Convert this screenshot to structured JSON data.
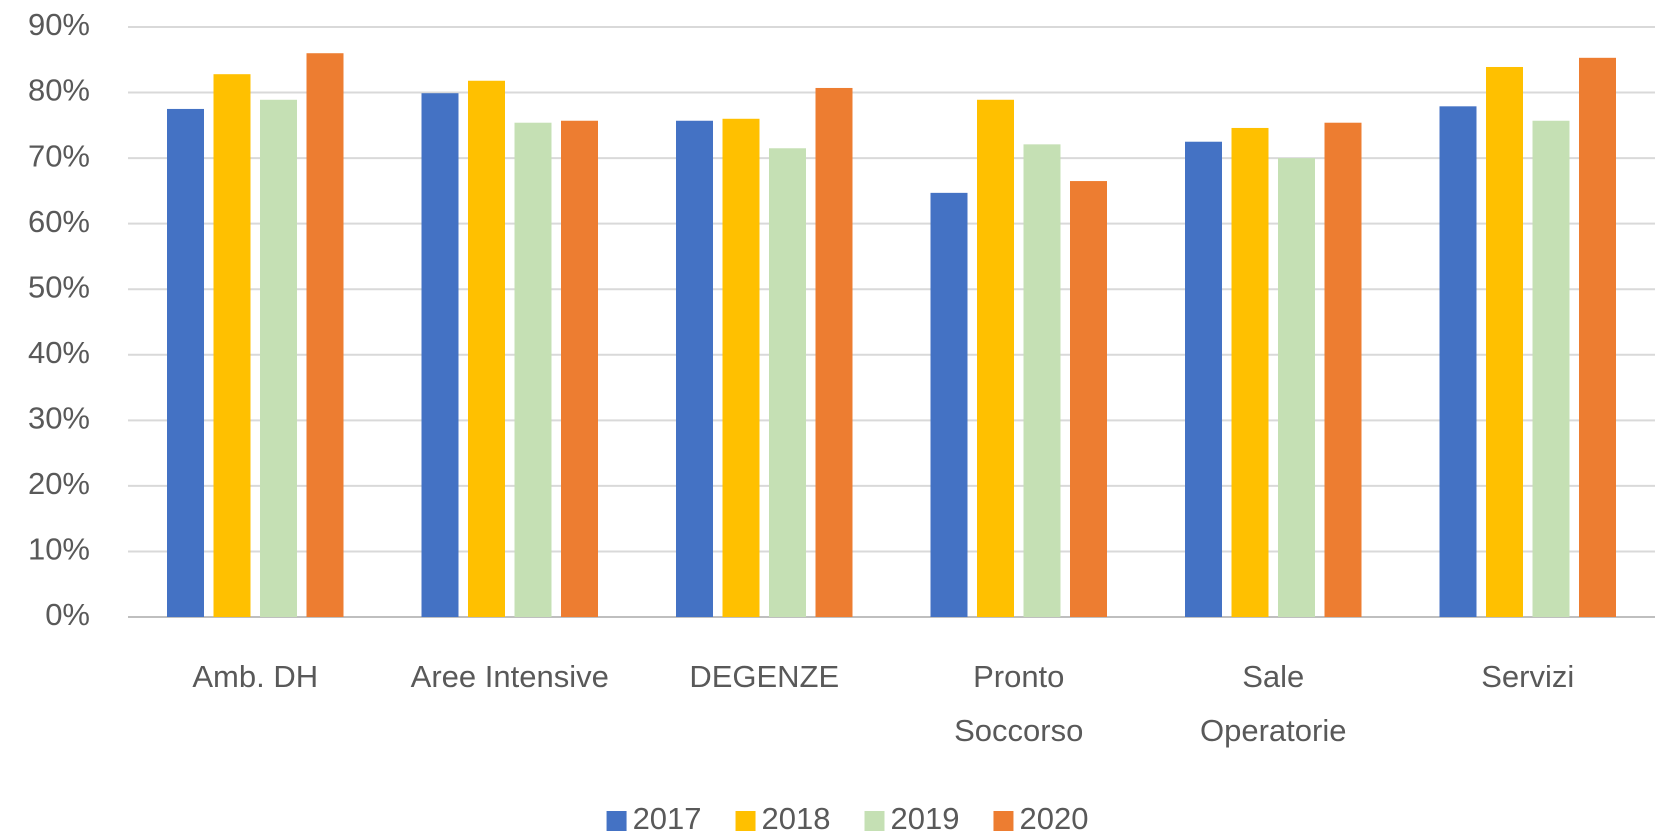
{
  "chart_data": {
    "type": "bar",
    "categories": [
      "Amb. DH",
      "Aree Intensive",
      "DEGENZE",
      "Pronto\nSoccorso",
      "Sale\nOperatorie",
      "Servizi"
    ],
    "series": [
      {
        "name": "2017",
        "color": "#4472c4",
        "values": [
          77.5,
          79.9,
          75.7,
          64.7,
          72.5,
          77.9
        ]
      },
      {
        "name": "2018",
        "color": "#ffc000",
        "values": [
          82.8,
          81.8,
          76.0,
          78.9,
          74.6,
          83.9
        ]
      },
      {
        "name": "2019",
        "color": "#c5e0b4",
        "values": [
          78.9,
          75.4,
          71.5,
          72.1,
          70.0,
          75.7
        ]
      },
      {
        "name": "2020",
        "color": "#ed7d31",
        "values": [
          86.0,
          75.7,
          80.7,
          66.5,
          75.4,
          85.3
        ]
      }
    ],
    "ylim": [
      0,
      90
    ],
    "yticks": [
      {
        "value": 0,
        "label": "0%"
      },
      {
        "value": 10,
        "label": "10%"
      },
      {
        "value": 20,
        "label": "20%"
      },
      {
        "value": 30,
        "label": "30%"
      },
      {
        "value": 40,
        "label": "40%"
      },
      {
        "value": 50,
        "label": "50%"
      },
      {
        "value": 60,
        "label": "60%"
      },
      {
        "value": 70,
        "label": "70%"
      },
      {
        "value": 80,
        "label": "80%"
      },
      {
        "value": 90,
        "label": "90%"
      }
    ],
    "grid": true,
    "legend": "bottom"
  }
}
